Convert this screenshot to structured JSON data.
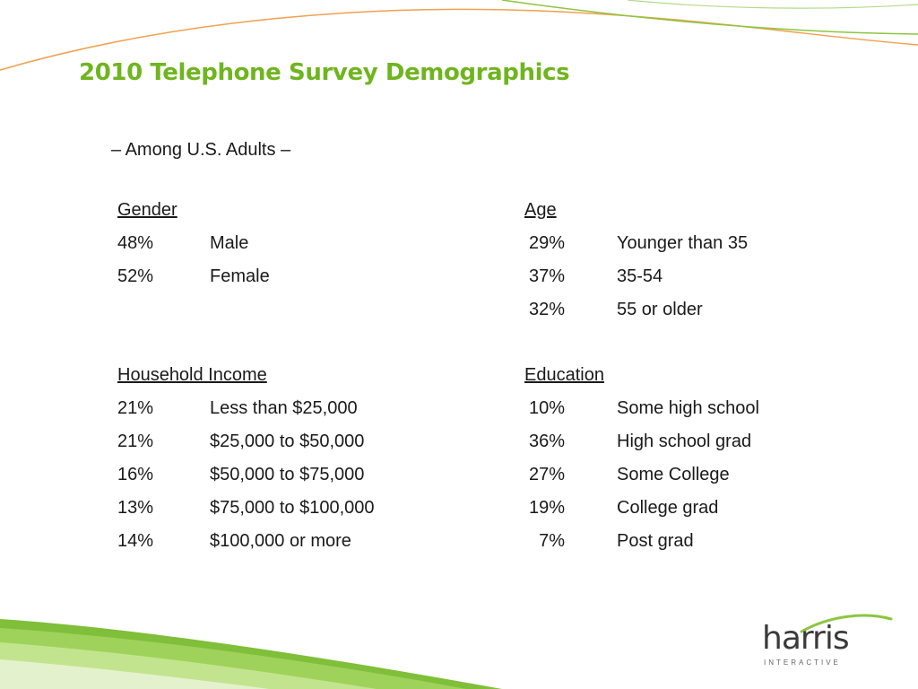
{
  "slide": {
    "title": "2010 Telephone Survey Demographics",
    "subtitle": "– Among U.S. Adults –"
  },
  "gender": {
    "heading": "Gender",
    "rows": [
      {
        "pct": "48%",
        "label": "Male"
      },
      {
        "pct": "52%",
        "label": "Female"
      }
    ]
  },
  "age": {
    "heading": "Age",
    "rows": [
      {
        "pct": "29%",
        "label": "Younger than 35"
      },
      {
        "pct": "37%",
        "label": "35-54"
      },
      {
        "pct": "32%",
        "label": "55 or older"
      }
    ]
  },
  "income": {
    "heading": "Household Income",
    "rows": [
      {
        "pct": "21%",
        "label": "Less than $25,000"
      },
      {
        "pct": "21%",
        "label": "$25,000 to $50,000"
      },
      {
        "pct": "16%",
        "label": "$50,000 to $75,000"
      },
      {
        "pct": "13%",
        "label": "$75,000 to $100,000"
      },
      {
        "pct": "14%",
        "label": "$100,000 or more"
      }
    ]
  },
  "education": {
    "heading": "Education",
    "rows": [
      {
        "pct": "10%",
        "label": "Some high school"
      },
      {
        "pct": "36%",
        "label": "High school grad"
      },
      {
        "pct": "27%",
        "label": "Some College"
      },
      {
        "pct": "19%",
        "label": "College grad"
      },
      {
        "pct": "7%",
        "label": "Post grad"
      }
    ]
  },
  "logo": {
    "name": "harris",
    "tagline": "INTERACTIVE"
  },
  "colors": {
    "title": "#6fb51f",
    "swoosh_green": "#8cc63f",
    "swoosh_orange": "#f0a050"
  }
}
